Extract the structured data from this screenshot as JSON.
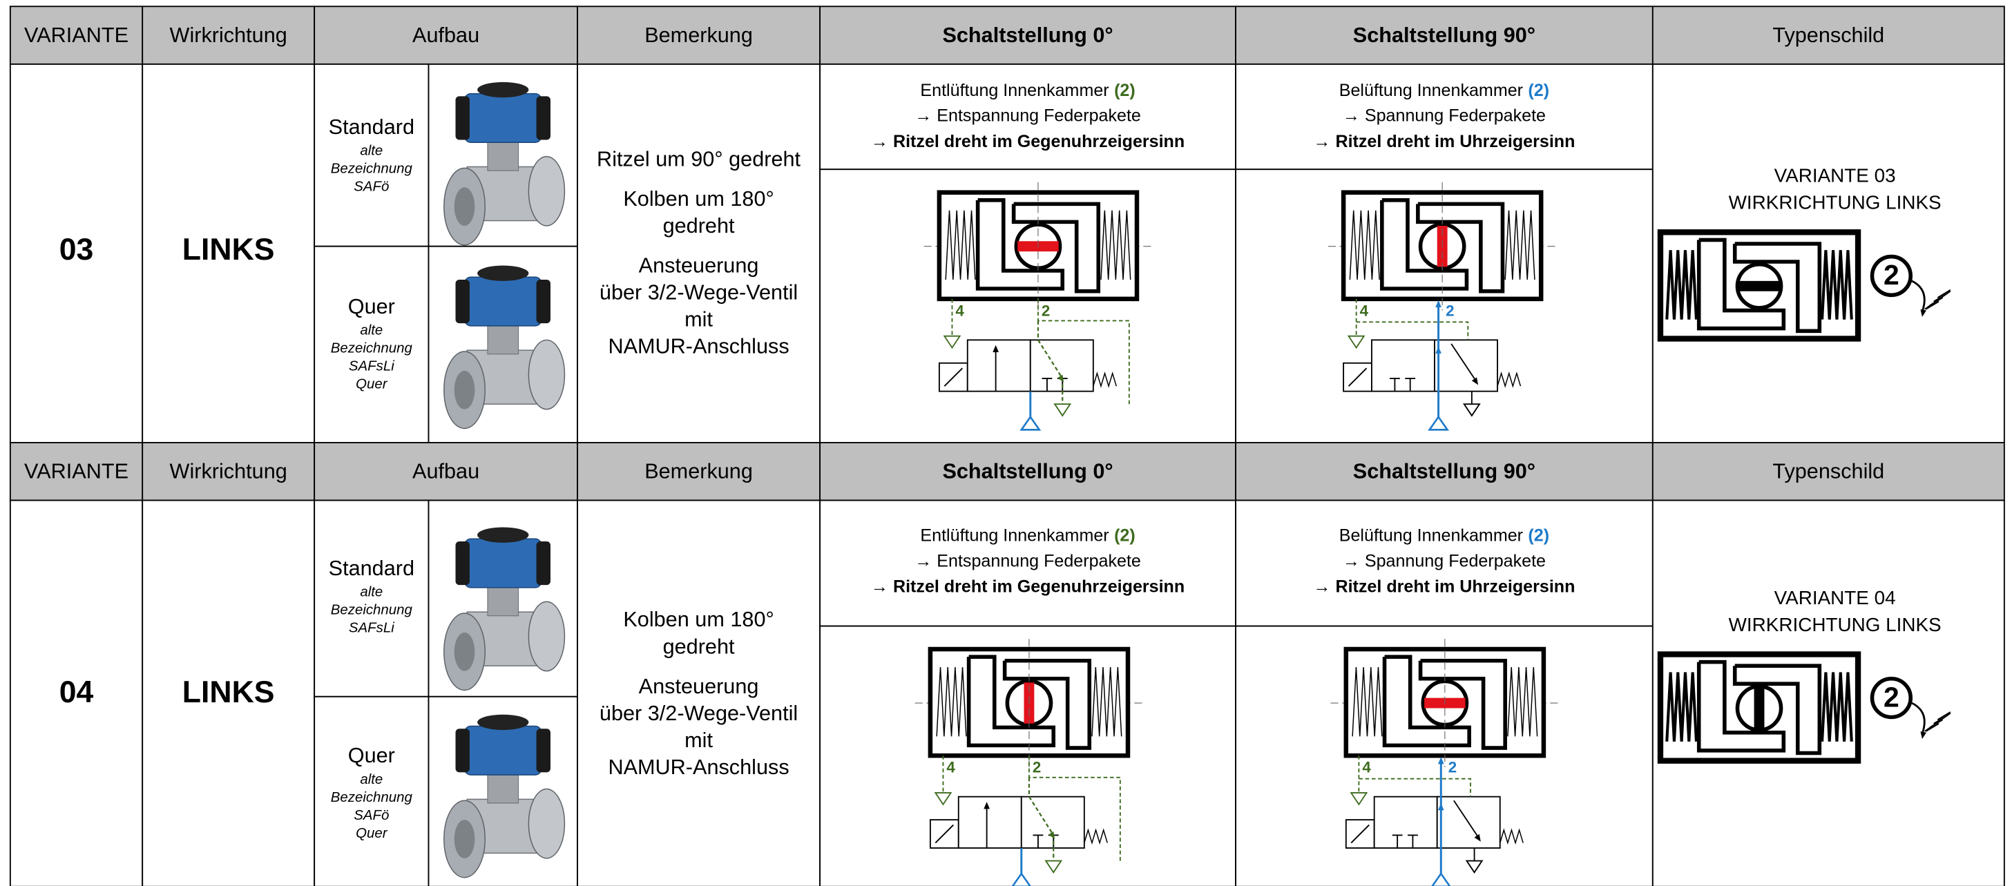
{
  "header": {
    "variante": "VARIANTE",
    "wirkrichtung": "Wirkrichtung",
    "aufbau": "Aufbau",
    "bemerkung": "Bemerkung",
    "schalt0": "Schaltstellung 0°",
    "schalt90": "Schaltstellung 90°",
    "typenschild": "Typenschild"
  },
  "rows": [
    {
      "variante": "03",
      "wirkrichtung": "LINKS",
      "aufbau": [
        {
          "name": "Standard",
          "note": [
            "alte",
            "Bezeichnung",
            "SAFö"
          ]
        },
        {
          "name": "Quer",
          "note": [
            "alte",
            "Bezeichnung",
            "SAFsLi",
            "Quer"
          ]
        }
      ],
      "bemerkung": [
        [
          "Ritzel um 90° gedreht"
        ],
        [
          "Kolben um 180°",
          "gedreht"
        ],
        [
          "Ansteuerung",
          "über 3/2-Wege-Ventil",
          "mit",
          "NAMUR-Anschluss"
        ]
      ],
      "schalt0": {
        "lead": "Entlüftung Innenkammer",
        "port": "(2)",
        "lines": [
          "→ Entspannung Federpakete",
          "→ Ritzel dreht im Gegenuhrzeigersinn"
        ],
        "ports": [
          "4",
          "2"
        ]
      },
      "schalt90": {
        "lead": "Belüftung Innenkammer",
        "port": "(2)",
        "lines": [
          "→ Spannung Federpakete",
          "→ Ritzel dreht im Uhrzeigersinn"
        ],
        "ports": [
          "4",
          "2"
        ]
      },
      "typenschild": {
        "lines": [
          "VARIANTE 03",
          "WIRKRICHTUNG LINKS"
        ],
        "port": "2"
      }
    },
    {
      "variante": "04",
      "wirkrichtung": "LINKS",
      "aufbau": [
        {
          "name": "Standard",
          "note": [
            "alte",
            "Bezeichnung",
            "SAFsLi"
          ]
        },
        {
          "name": "Quer",
          "note": [
            "alte",
            "Bezeichnung",
            "SAFö",
            "Quer"
          ]
        }
      ],
      "bemerkung": [
        [
          "Kolben um 180°",
          "gedreht"
        ],
        [
          "Ansteuerung",
          "über 3/2-Wege-Ventil",
          "mit",
          "NAMUR-Anschluss"
        ]
      ],
      "schalt0": {
        "lead": "Entlüftung Innenkammer",
        "port": "(2)",
        "lines": [
          "→ Entspannung Federpakete",
          "→ Ritzel dreht im Gegenuhrzeigersinn"
        ],
        "ports": [
          "4",
          "2"
        ]
      },
      "schalt90": {
        "lead": "Belüftung Innenkammer",
        "port": "(2)",
        "lines": [
          "→ Spannung Federpakete",
          "→ Ritzel dreht im Uhrzeigersinn"
        ],
        "ports": [
          "4",
          "2"
        ]
      },
      "typenschild": {
        "lines": [
          "VARIANTE 04",
          "WIRKRICHTUNG LINKS"
        ],
        "port": "2"
      }
    }
  ]
}
